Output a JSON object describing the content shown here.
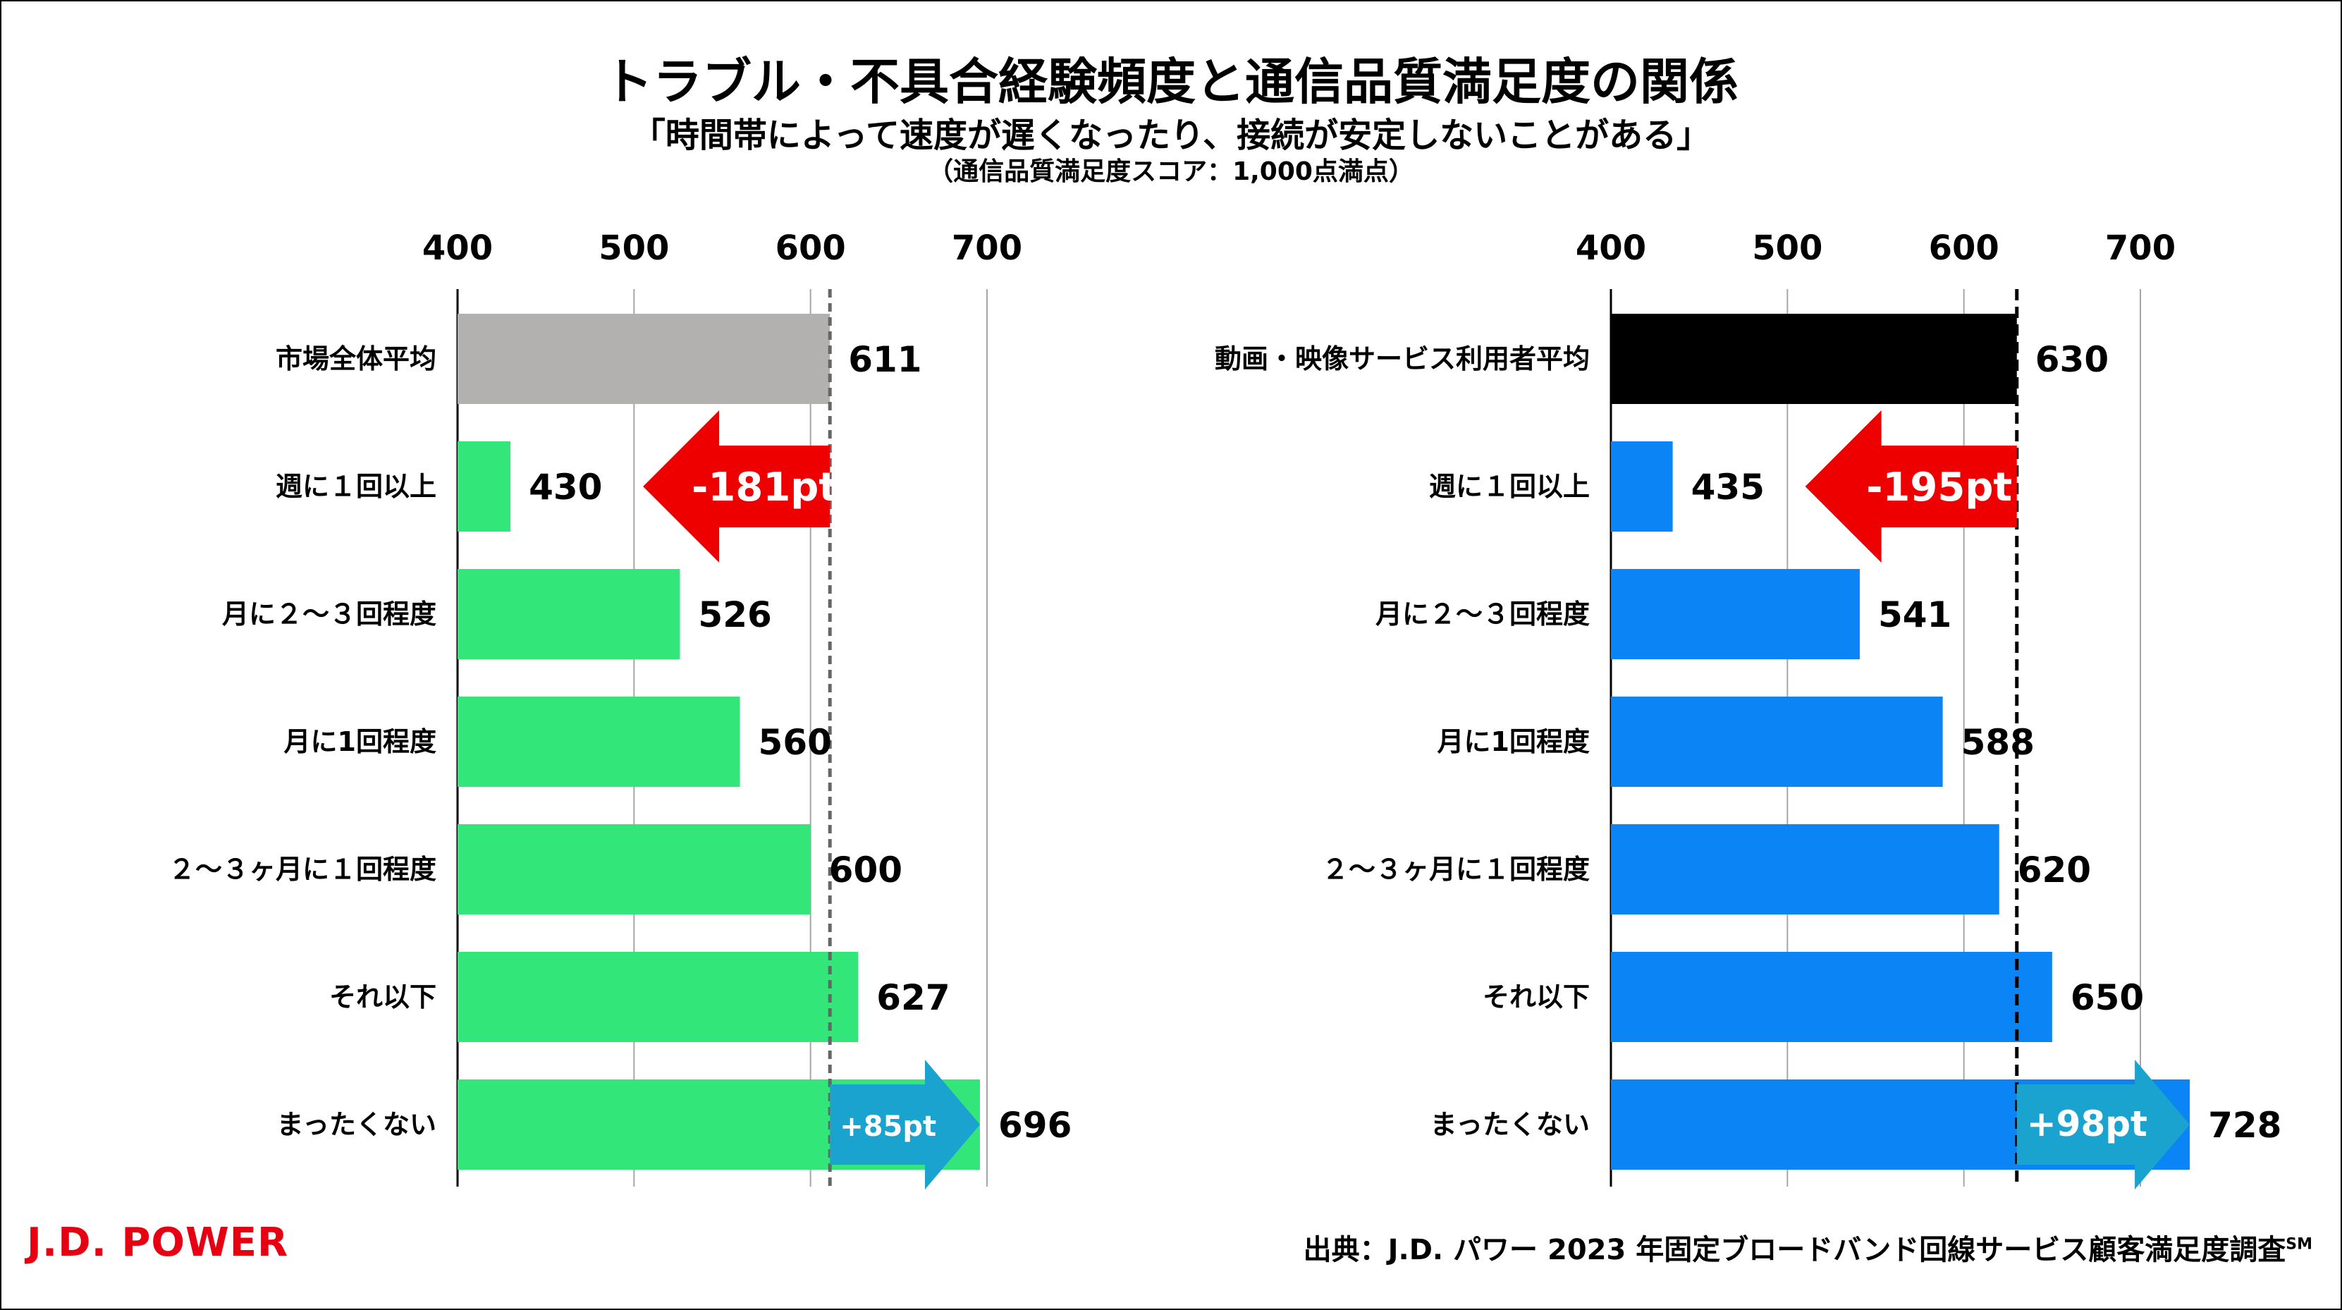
{
  "title": "トラブル・不具合経験頻度と通信品質満足度の関係",
  "subtitle": "「時間帯によって速度が遅くなったり、接続が安定しないことがある」",
  "note": "（通信品質満足度スコア：1,000点満点）",
  "logo": "J.D. POWER",
  "source": "出典：J.D. パワー 2023 年固定ブロードバンド回線サービス顧客満足度調査",
  "source_mark": "SM",
  "colors": {
    "left_bar": "#33e67a",
    "left_avg_bar": "#b3b0b0",
    "right_bar": "#0b84f5",
    "right_avg_bar": "#000000",
    "down_arrow": "#ee0000",
    "up_arrow": "#1aa3cf"
  },
  "chart_data": [
    {
      "type": "bar",
      "orientation": "horizontal",
      "categories": [
        "市場全体平均",
        "週に１回以上",
        "月に２～３回程度",
        "月に1回程度",
        "２～３ヶ月に１回程度",
        "それ以下",
        "まったくない"
      ],
      "values": [
        611,
        430,
        526,
        560,
        600,
        627,
        696
      ],
      "value_labels": [
        "611",
        "430",
        "526",
        "560",
        "600",
        "627",
        "696"
      ],
      "xlim": [
        400,
        700
      ],
      "ticks": [
        400,
        500,
        600,
        700
      ],
      "tick_labels": [
        "400",
        "500",
        "600",
        "700"
      ],
      "reference_line": 611,
      "grid": true,
      "annotations": [
        {
          "label": "-181pt",
          "from": 611,
          "to": 430,
          "row": 1,
          "direction": "down"
        },
        {
          "label": "+85pt",
          "from": 611,
          "to": 696,
          "row": 6,
          "direction": "up"
        }
      ]
    },
    {
      "type": "bar",
      "orientation": "horizontal",
      "categories": [
        "動画・映像サービス利用者平均",
        "週に１回以上",
        "月に２～３回程度",
        "月に1回程度",
        "２～３ヶ月に１回程度",
        "それ以下",
        "まったくない"
      ],
      "values": [
        630,
        435,
        541,
        588,
        620,
        650,
        728
      ],
      "value_labels": [
        "630",
        "435",
        "541",
        "588",
        "620",
        "650",
        "728"
      ],
      "xlim": [
        400,
        700
      ],
      "ticks": [
        400,
        500,
        600,
        700
      ],
      "tick_labels": [
        "400",
        "500",
        "600",
        "700"
      ],
      "reference_line": 630,
      "grid": true,
      "annotations": [
        {
          "label": "-195pt",
          "from": 630,
          "to": 435,
          "row": 1,
          "direction": "down"
        },
        {
          "label": "+98pt",
          "from": 630,
          "to": 728,
          "row": 6,
          "direction": "up"
        }
      ]
    }
  ]
}
